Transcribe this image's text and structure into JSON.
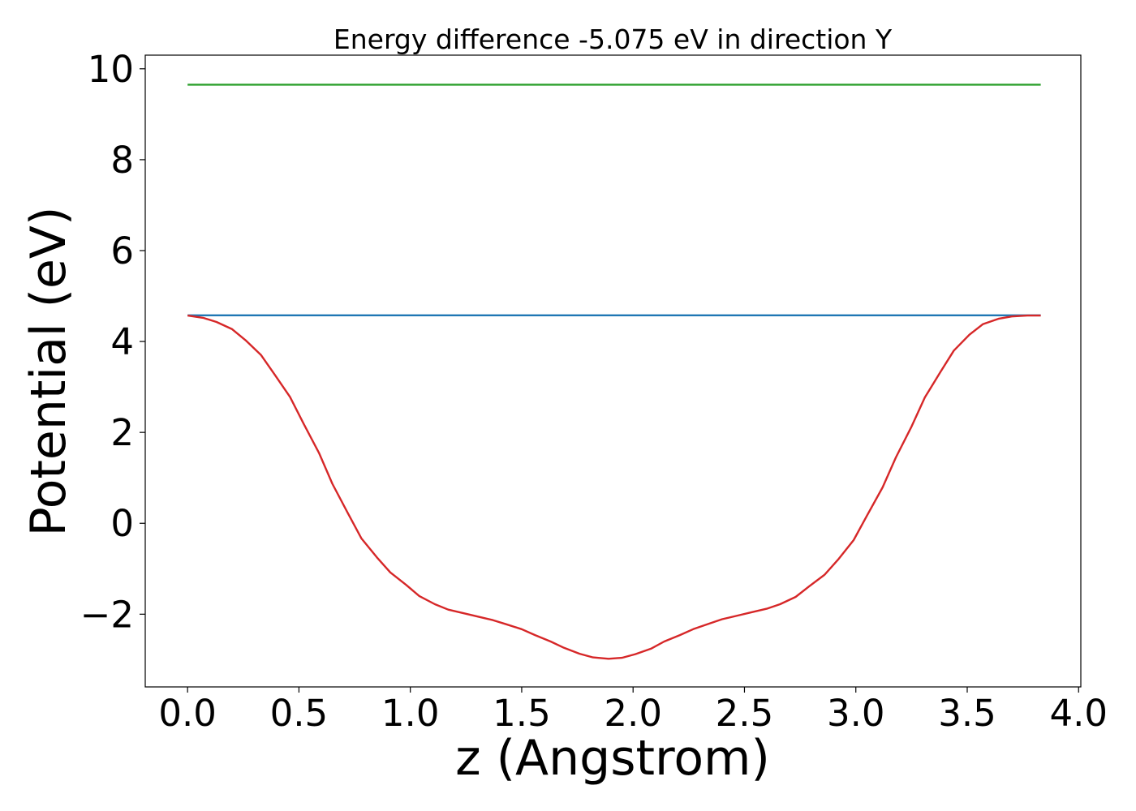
{
  "chart_data": {
    "type": "line",
    "title": "Energy difference -5.075 eV in direction Y",
    "xlabel": "z (Angstrom)",
    "ylabel": "Potential (eV)",
    "xlim": [
      -0.19,
      4.01
    ],
    "ylim": [
      -3.6,
      10.3
    ],
    "xticks": [
      0.0,
      0.5,
      1.0,
      1.5,
      2.0,
      2.5,
      3.0,
      3.5,
      4.0
    ],
    "xtick_labels": [
      "0.0",
      "0.5",
      "1.0",
      "1.5",
      "2.0",
      "2.5",
      "3.0",
      "3.5",
      "4.0"
    ],
    "yticks": [
      -2,
      0,
      2,
      4,
      6,
      8,
      10
    ],
    "ytick_labels": [
      "−2",
      "0",
      "2",
      "4",
      "6",
      "8",
      "10"
    ],
    "grid": false,
    "series": [
      {
        "color": "#2ca02c",
        "x": [
          0.0,
          3.83
        ],
        "y": [
          9.65,
          9.65
        ]
      },
      {
        "color": "#1f77b4",
        "x": [
          0.0,
          3.83
        ],
        "y": [
          4.575,
          4.575
        ]
      },
      {
        "color": "#d62728",
        "x": [
          0.0,
          0.07,
          0.13,
          0.2,
          0.26,
          0.33,
          0.39,
          0.46,
          0.52,
          0.59,
          0.65,
          0.72,
          0.78,
          0.85,
          0.91,
          0.98,
          1.04,
          1.11,
          1.17,
          1.24,
          1.3,
          1.37,
          1.43,
          1.5,
          1.56,
          1.63,
          1.69,
          1.76,
          1.82,
          1.89,
          1.95,
          2.01,
          2.08,
          2.14,
          2.21,
          2.27,
          2.34,
          2.4,
          2.47,
          2.53,
          2.6,
          2.66,
          2.73,
          2.79,
          2.86,
          2.92,
          2.99,
          3.05,
          3.12,
          3.18,
          3.25,
          3.31,
          3.38,
          3.44,
          3.51,
          3.57,
          3.64,
          3.7,
          3.77,
          3.83
        ],
        "y": [
          4.57,
          4.52,
          4.43,
          4.27,
          4.03,
          3.7,
          3.28,
          2.78,
          2.2,
          1.55,
          0.87,
          0.22,
          -0.33,
          -0.75,
          -1.08,
          -1.35,
          -1.6,
          -1.78,
          -1.9,
          -1.98,
          -2.05,
          -2.13,
          -2.22,
          -2.33,
          -2.46,
          -2.6,
          -2.74,
          -2.87,
          -2.95,
          -2.98,
          -2.96,
          -2.88,
          -2.76,
          -2.6,
          -2.46,
          -2.33,
          -2.21,
          -2.11,
          -2.03,
          -1.96,
          -1.88,
          -1.78,
          -1.62,
          -1.39,
          -1.13,
          -0.8,
          -0.37,
          0.17,
          0.79,
          1.45,
          2.13,
          2.77,
          3.33,
          3.8,
          4.15,
          4.38,
          4.5,
          4.55,
          4.57,
          4.57
        ]
      }
    ]
  }
}
